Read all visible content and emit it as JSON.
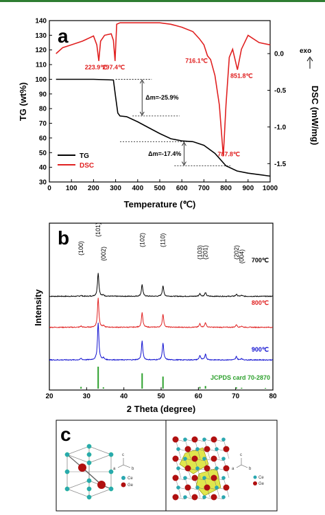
{
  "panel_labels": {
    "a": "a",
    "b": "b",
    "c": "c"
  },
  "chart_data": [
    {
      "type": "line",
      "panel": "a",
      "xlabel": "Temperature (℃)",
      "ylabel": "TG (wt%)",
      "y2label": "DSC (mW/mg)",
      "exo_label": "exo",
      "xlim": [
        0,
        1000
      ],
      "ylim": [
        30,
        140
      ],
      "y2lim": [
        -1.75,
        0.45
      ],
      "xticks": [
        0,
        100,
        200,
        300,
        400,
        500,
        600,
        700,
        800,
        900,
        1000
      ],
      "yticks": [
        30,
        40,
        50,
        60,
        70,
        80,
        90,
        100,
        110,
        120,
        130,
        140
      ],
      "y2ticks": [
        0.0,
        -0.5,
        -1.0,
        -1.5
      ],
      "y2ticklabels": [
        "0.0",
        "-0.5",
        "-1.0",
        "-1.5"
      ],
      "legend_position": "bottom-left",
      "series": [
        {
          "name": "TG",
          "color": "#000000",
          "axis": "left",
          "x": [
            30,
            100,
            200,
            290,
            300,
            310,
            320,
            350,
            400,
            450,
            500,
            550,
            600,
            650,
            700,
            750,
            800,
            850,
            900,
            950,
            1000
          ],
          "y": [
            100,
            100,
            100,
            99.5,
            88,
            77,
            75,
            74.5,
            71,
            67,
            63,
            59.5,
            58,
            57.5,
            55,
            49.5,
            41,
            37.5,
            36,
            35,
            34
          ]
        },
        {
          "name": "DSC",
          "color": "#e02020",
          "axis": "right",
          "x": [
            30,
            60,
            100,
            150,
            200,
            215,
            223.9,
            232,
            250,
            280,
            290,
            297.4,
            305,
            320,
            350,
            400,
            450,
            500,
            550,
            600,
            650,
            680,
            700,
            716.1,
            730,
            750,
            770,
            787.8,
            800,
            815,
            830,
            851.8,
            870,
            900,
            950,
            1000
          ],
          "y": [
            0.0,
            0.08,
            0.12,
            0.17,
            0.24,
            0.12,
            -0.1,
            0.17,
            0.25,
            0.27,
            0.18,
            -0.1,
            0.4,
            0.42,
            0.42,
            0.42,
            0.42,
            0.42,
            0.4,
            0.36,
            0.3,
            0.2,
            0.12,
            -0.03,
            -0.08,
            -0.3,
            -0.7,
            -1.4,
            -0.7,
            -0.05,
            0.06,
            -0.22,
            0.06,
            0.25,
            0.15,
            0.12
          ]
        }
      ],
      "annotations": [
        {
          "text": "223.9℃",
          "x": 223.9,
          "y2": -0.1
        },
        {
          "text": "297.4℃",
          "x": 297.4,
          "y2": -0.1
        },
        {
          "text": "716.1℃",
          "x": 716.1,
          "y2": -0.03
        },
        {
          "text": "851.8℃",
          "x": 851.8,
          "y2": -0.22
        },
        {
          "text": "787.8℃",
          "x": 787.8,
          "y2": -1.4
        }
      ],
      "mass_losses": [
        {
          "text": "Δm=-25.9%",
          "x": 420,
          "y_top": 100,
          "y_bottom": 75
        },
        {
          "text": "Δm=-17.4%",
          "x": 610,
          "y_top": 57.5,
          "y_bottom": 41
        }
      ]
    },
    {
      "type": "line",
      "panel": "b",
      "xlabel": "2 Theta (degree)",
      "ylabel": "Intensity",
      "xlim": [
        20,
        80
      ],
      "xticks": [
        20,
        30,
        40,
        50,
        60,
        70,
        80
      ],
      "series": [
        {
          "name": "700℃",
          "color": "#000000",
          "offset": 2.2,
          "scale": 0.6
        },
        {
          "name": "800℃",
          "color": "#e02020",
          "offset": 1.25,
          "scale": 0.75
        },
        {
          "name": "900℃",
          "color": "#1010d0",
          "offset": 0.25,
          "scale": 0.95
        }
      ],
      "peaks": [
        {
          "two_theta": 28.5,
          "rel": 0.04,
          "hkl": "(100)"
        },
        {
          "two_theta": 33.1,
          "rel": 1.0,
          "hkl": "(101)"
        },
        {
          "two_theta": 34.5,
          "rel": 0.05,
          "hkl": "(002)"
        },
        {
          "two_theta": 44.9,
          "rel": 0.5,
          "hkl": "(102)"
        },
        {
          "two_theta": 50.5,
          "rel": 0.45,
          "hkl": "(110)"
        },
        {
          "two_theta": 60.4,
          "rel": 0.12,
          "hkl": "(103)"
        },
        {
          "two_theta": 61.9,
          "rel": 0.16,
          "hkl": "(201)"
        },
        {
          "two_theta": 70.2,
          "rel": 0.09,
          "hkl": "(202)"
        },
        {
          "two_theta": 71.6,
          "rel": 0.04,
          "hkl": "(004)"
        }
      ],
      "reference": {
        "label": "JCPDS card 70-2870",
        "color": "#2ca02c",
        "two_theta": [
          28.5,
          33.1,
          34.5,
          44.9,
          50.5,
          60.4,
          61.9,
          70.2,
          71.6,
          78.0
        ],
        "rel": [
          0.08,
          1.0,
          0.06,
          0.7,
          0.55,
          0.08,
          0.12,
          0.06,
          0.04,
          0.03
        ]
      }
    }
  ],
  "panel_c": {
    "left_legend": [
      "Ce",
      "Ge"
    ],
    "right_legend": [
      "Ce",
      "Ge"
    ],
    "axes_left": {
      "c": "c",
      "a": "a",
      "b": "b"
    },
    "axes_right": {
      "c": "c",
      "a": "a",
      "b": "b"
    },
    "colors": {
      "ce": "#2aa7b0",
      "ge": "#b01010",
      "bond": "#7a7a7a",
      "poly": "#d8e020"
    }
  }
}
